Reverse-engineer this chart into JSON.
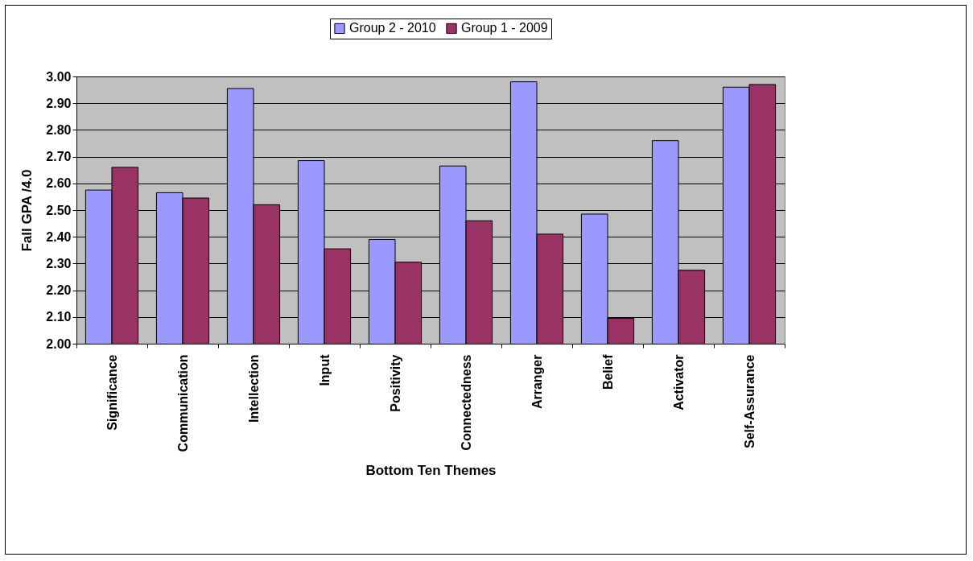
{
  "chart_data": {
    "type": "bar",
    "xlabel": "Bottom Ten Themes",
    "ylabel": "Fall GPA /4.0",
    "categories": [
      "Significance",
      "Communication",
      "Intellection",
      "Input",
      "Positivity",
      "Connectedness",
      "Arranger",
      "Belief",
      "Activator",
      "Self-Assurance"
    ],
    "series": [
      {
        "name": "Group 2 - 2010",
        "color": "#9999ff",
        "values": [
          2.575,
          2.565,
          2.955,
          2.685,
          2.39,
          2.665,
          2.98,
          2.485,
          2.76,
          2.96
        ]
      },
      {
        "name": "Group 1 - 2009",
        "color": "#993366",
        "values": [
          2.66,
          2.545,
          2.52,
          2.355,
          2.305,
          2.46,
          2.41,
          2.095,
          2.275,
          2.97
        ]
      }
    ],
    "ylim": [
      2.0,
      3.0
    ],
    "yticks": [
      {
        "value": 2.0,
        "label": "2.00"
      },
      {
        "value": 2.1,
        "label": "2.10"
      },
      {
        "value": 2.2,
        "label": "2.20"
      },
      {
        "value": 2.3,
        "label": "2.30"
      },
      {
        "value": 2.4,
        "label": "2.40"
      },
      {
        "value": 2.5,
        "label": "2.50"
      },
      {
        "value": 2.6,
        "label": "2.60"
      },
      {
        "value": 2.7,
        "label": "2.70"
      },
      {
        "value": 2.8,
        "label": "2.80"
      },
      {
        "value": 2.9,
        "label": "2.90"
      },
      {
        "value": 3.0,
        "label": "3.00"
      }
    ],
    "grid": "y",
    "legend": "top"
  }
}
